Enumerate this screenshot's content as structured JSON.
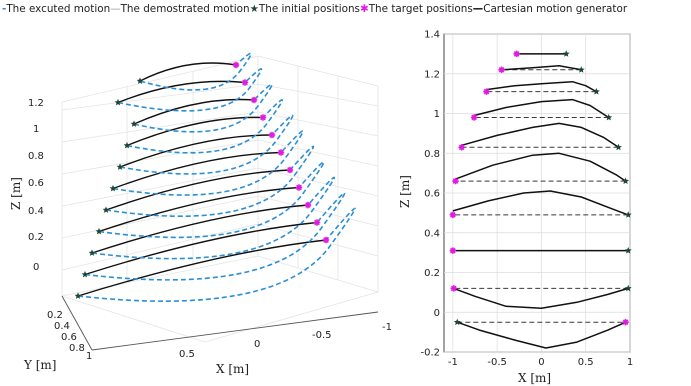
{
  "legend": {
    "items": [
      {
        "symbol": "-",
        "label": "The excuted motion",
        "style": "dash",
        "color": "#2c8fd6"
      },
      {
        "symbol": "—",
        "label": "The demostrated motion",
        "style": "thin",
        "color": "#9a9a9a"
      },
      {
        "symbol": "★",
        "label": "The initial positions",
        "style": "star-dark",
        "color": "#1e4434"
      },
      {
        "symbol": "✱",
        "label": "The target positions",
        "style": "star-mag",
        "color": "#e01be0"
      },
      {
        "symbol": "—",
        "label": "Cartesian motion generator",
        "style": "thick",
        "color": "#000000"
      }
    ]
  },
  "colors": {
    "executed": "#2c8fd6",
    "demonstrated": "#3a3a3a",
    "generator": "#111111",
    "initial": "#1e4434",
    "target": "#e01be0",
    "grid": "#dcdcdc"
  },
  "chart_data": [
    {
      "type": "line3d",
      "title": "",
      "xlabel": "X [m]",
      "ylabel": "Y [m]",
      "zlabel": "Z [m]",
      "x_ticks": [
        "0.5",
        "0",
        "-0.5",
        "-1"
      ],
      "y_ticks": [
        "0.2",
        "0.4",
        "0.6",
        "0.8",
        "1"
      ],
      "z_ticks": [
        "0",
        "0.2",
        "0.4",
        "0.6",
        "0.8",
        "1",
        "1.2"
      ],
      "description_values": {
        "trajectories": 11,
        "z_levels": [
          -0.05,
          0.12,
          0.31,
          0.49,
          0.66,
          0.82,
          0.98,
          1.11,
          1.21,
          1.29,
          1.37
        ]
      }
    },
    {
      "type": "line",
      "title": "",
      "xlabel": "X [m]",
      "ylabel": "Z [m]",
      "xlim": [
        -1.1,
        1.0
      ],
      "ylim": [
        -0.2,
        1.4
      ],
      "x_ticks": [
        "-1",
        "-0.5",
        "0",
        "0.5",
        "1"
      ],
      "y_ticks": [
        "-0.2",
        "0",
        "0.2",
        "0.4",
        "0.6",
        "0.8",
        "1",
        "1.2",
        "1.4"
      ],
      "grid": true,
      "series": [
        {
          "start": [
            -0.95,
            -0.05
          ],
          "end": [
            0.95,
            -0.05
          ],
          "generator": [
            [
              -0.95,
              -0.05
            ],
            [
              -0.7,
              -0.09
            ],
            [
              -0.3,
              -0.14
            ],
            [
              0.05,
              -0.18
            ],
            [
              0.4,
              -0.15
            ],
            [
              0.75,
              -0.09
            ],
            [
              0.95,
              -0.05
            ]
          ]
        },
        {
          "start": [
            0.98,
            0.12
          ],
          "end": [
            -0.99,
            0.12
          ],
          "generator": [
            [
              -0.99,
              0.12
            ],
            [
              -0.75,
              0.08
            ],
            [
              -0.4,
              0.03
            ],
            [
              0.0,
              0.02
            ],
            [
              0.4,
              0.05
            ],
            [
              0.75,
              0.09
            ],
            [
              0.98,
              0.12
            ]
          ]
        },
        {
          "start": [
            0.98,
            0.31
          ],
          "end": [
            -1.0,
            0.31
          ],
          "generator": [
            [
              -1.0,
              0.31
            ],
            [
              0.98,
              0.31
            ]
          ]
        },
        {
          "start": [
            0.98,
            0.49
          ],
          "end": [
            -1.0,
            0.49
          ],
          "generator": [
            [
              -1.0,
              0.51
            ],
            [
              -0.6,
              0.56
            ],
            [
              -0.2,
              0.6
            ],
            [
              0.1,
              0.61
            ],
            [
              0.45,
              0.58
            ],
            [
              0.8,
              0.52
            ],
            [
              0.98,
              0.49
            ]
          ]
        },
        {
          "start": [
            0.95,
            0.66
          ],
          "end": [
            -0.97,
            0.66
          ],
          "generator": [
            [
              -0.97,
              0.67
            ],
            [
              -0.55,
              0.74
            ],
            [
              -0.1,
              0.79
            ],
            [
              0.2,
              0.8
            ],
            [
              0.55,
              0.76
            ],
            [
              0.85,
              0.69
            ],
            [
              0.95,
              0.66
            ]
          ]
        },
        {
          "start": [
            0.87,
            0.83
          ],
          "end": [
            -0.9,
            0.83
          ],
          "generator": [
            [
              -0.9,
              0.84
            ],
            [
              -0.5,
              0.89
            ],
            [
              -0.1,
              0.93
            ],
            [
              0.2,
              0.95
            ],
            [
              0.45,
              0.93
            ],
            [
              0.7,
              0.88
            ],
            [
              0.87,
              0.83
            ]
          ]
        },
        {
          "start": [
            0.76,
            0.98
          ],
          "end": [
            -0.76,
            0.98
          ],
          "generator": [
            [
              -0.76,
              0.99
            ],
            [
              -0.4,
              1.03
            ],
            [
              0.0,
              1.06
            ],
            [
              0.35,
              1.07
            ],
            [
              0.55,
              1.04
            ],
            [
              0.76,
              0.98
            ]
          ]
        },
        {
          "start": [
            0.62,
            1.11
          ],
          "end": [
            -0.62,
            1.11
          ],
          "generator": [
            [
              -0.62,
              1.12
            ],
            [
              -0.3,
              1.14
            ],
            [
              0.0,
              1.15
            ],
            [
              0.35,
              1.16
            ],
            [
              0.5,
              1.14
            ],
            [
              0.62,
              1.11
            ]
          ]
        },
        {
          "start": [
            0.45,
            1.22
          ],
          "end": [
            -0.45,
            1.22
          ],
          "generator": [
            [
              -0.45,
              1.22
            ],
            [
              -0.1,
              1.23
            ],
            [
              0.2,
              1.24
            ],
            [
              0.45,
              1.22
            ]
          ]
        },
        {
          "start": [
            0.28,
            1.3
          ],
          "end": [
            -0.28,
            1.3
          ],
          "generator": [
            [
              -0.28,
              1.3
            ],
            [
              0.0,
              1.3
            ],
            [
              0.28,
              1.3
            ]
          ]
        }
      ]
    }
  ]
}
